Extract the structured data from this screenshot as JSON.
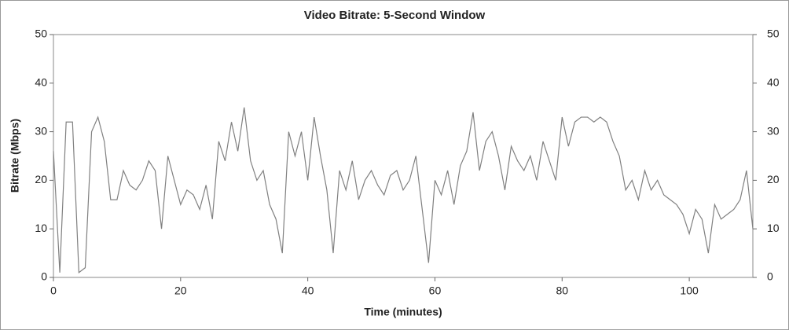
{
  "chart_data": {
    "type": "line",
    "title": "Video Bitrate: 5-Second Window",
    "x_label": "Time (minutes)",
    "y_label": "Bitrate (Mbps)",
    "x": [
      0,
      1,
      2,
      3,
      4,
      5,
      6,
      7,
      8,
      9,
      10,
      11,
      12,
      13,
      14,
      15,
      16,
      17,
      18,
      19,
      20,
      21,
      22,
      23,
      24,
      25,
      26,
      27,
      28,
      29,
      30,
      31,
      32,
      33,
      34,
      35,
      36,
      37,
      38,
      39,
      40,
      41,
      42,
      43,
      44,
      45,
      46,
      47,
      48,
      49,
      50,
      51,
      52,
      53,
      54,
      55,
      56,
      57,
      58,
      59,
      60,
      61,
      62,
      63,
      64,
      65,
      66,
      67,
      68,
      69,
      70,
      71,
      72,
      73,
      74,
      75,
      76,
      77,
      78,
      79,
      80,
      81,
      82,
      83,
      84,
      85,
      86,
      87,
      88,
      89,
      90,
      91,
      92,
      93,
      94,
      95,
      96,
      97,
      98,
      99,
      100,
      101,
      102,
      103,
      104,
      105,
      106,
      107,
      108,
      109,
      110
    ],
    "series": [
      {
        "name": "Bitrate",
        "color": "#808080",
        "values": [
          26,
          1,
          32,
          32,
          1,
          2,
          30,
          33,
          28,
          16,
          16,
          22,
          19,
          18,
          20,
          24,
          22,
          10,
          25,
          20,
          15,
          18,
          17,
          14,
          19,
          12,
          28,
          24,
          32,
          26,
          35,
          24,
          20,
          22,
          15,
          12,
          5,
          30,
          25,
          30,
          20,
          33,
          25,
          18,
          5,
          22,
          18,
          24,
          16,
          20,
          22,
          19,
          17,
          21,
          22,
          18,
          20,
          25,
          14,
          3,
          20,
          17,
          22,
          15,
          23,
          26,
          34,
          22,
          28,
          30,
          25,
          18,
          27,
          24,
          22,
          25,
          20,
          28,
          24,
          20,
          33,
          27,
          32,
          33,
          33,
          32,
          33,
          32,
          28,
          25,
          18,
          20,
          16,
          22,
          18,
          20,
          17,
          16,
          15,
          13,
          9,
          14,
          12,
          5,
          15,
          12,
          13,
          14,
          16,
          22,
          10
        ]
      }
    ],
    "xlim": [
      0,
      110
    ],
    "xticks": [
      0,
      20,
      40,
      60,
      80,
      100
    ],
    "ylim": [
      0,
      50
    ],
    "yticks": [
      0,
      10,
      20,
      30,
      40,
      50
    ],
    "y2lim": [
      0,
      50
    ],
    "y2ticks": [
      0,
      10,
      20,
      30,
      40,
      50
    ]
  }
}
